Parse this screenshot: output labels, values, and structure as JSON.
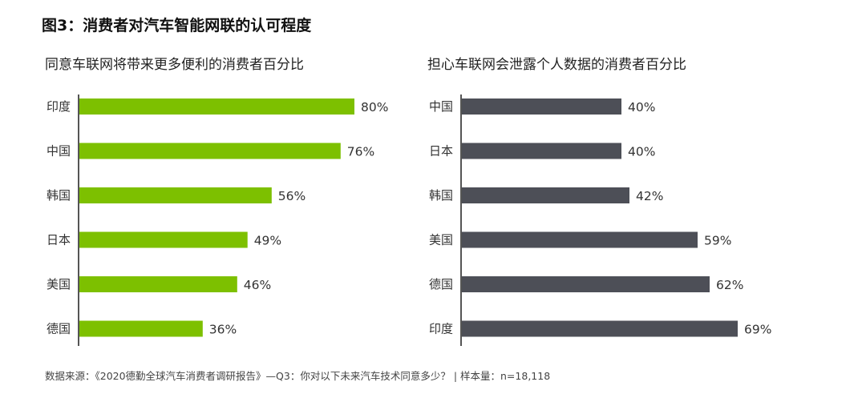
{
  "figure_title": "图3：消费者对汽车智能网联的认可程度",
  "source_note": "数据来源：《2020德勤全球汽车消费者调研报告》—Q3：你对以下未来汽车技术同意多少？ | 样本量：n=18,118",
  "colors": {
    "green": "#7dc000",
    "dark": "#4d4f57",
    "axis": "#555555"
  },
  "chart_data": [
    {
      "type": "bar",
      "orientation": "horizontal",
      "title": "同意车联网将带来更多便利的消费者百分比",
      "categories": [
        "印度",
        "中国",
        "韩国",
        "日本",
        "美国",
        "德国"
      ],
      "values": [
        80,
        76,
        56,
        49,
        46,
        36
      ],
      "labels": [
        "80%",
        "76%",
        "56%",
        "49%",
        "46%",
        "36%"
      ],
      "unit": "%",
      "color": "#7dc000",
      "xlim": [
        0,
        100
      ],
      "grid": false
    },
    {
      "type": "bar",
      "orientation": "horizontal",
      "title": "担心车联网会泄露个人数据的消费者百分比",
      "categories": [
        "中国",
        "日本",
        "韩国",
        "美国",
        "德国",
        "印度"
      ],
      "values": [
        40,
        40,
        42,
        59,
        62,
        69
      ],
      "labels": [
        "40%",
        "40%",
        "42%",
        "59%",
        "62%",
        "69%"
      ],
      "unit": "%",
      "color": "#4d4f57",
      "xlim": [
        0,
        100
      ],
      "grid": false
    }
  ]
}
